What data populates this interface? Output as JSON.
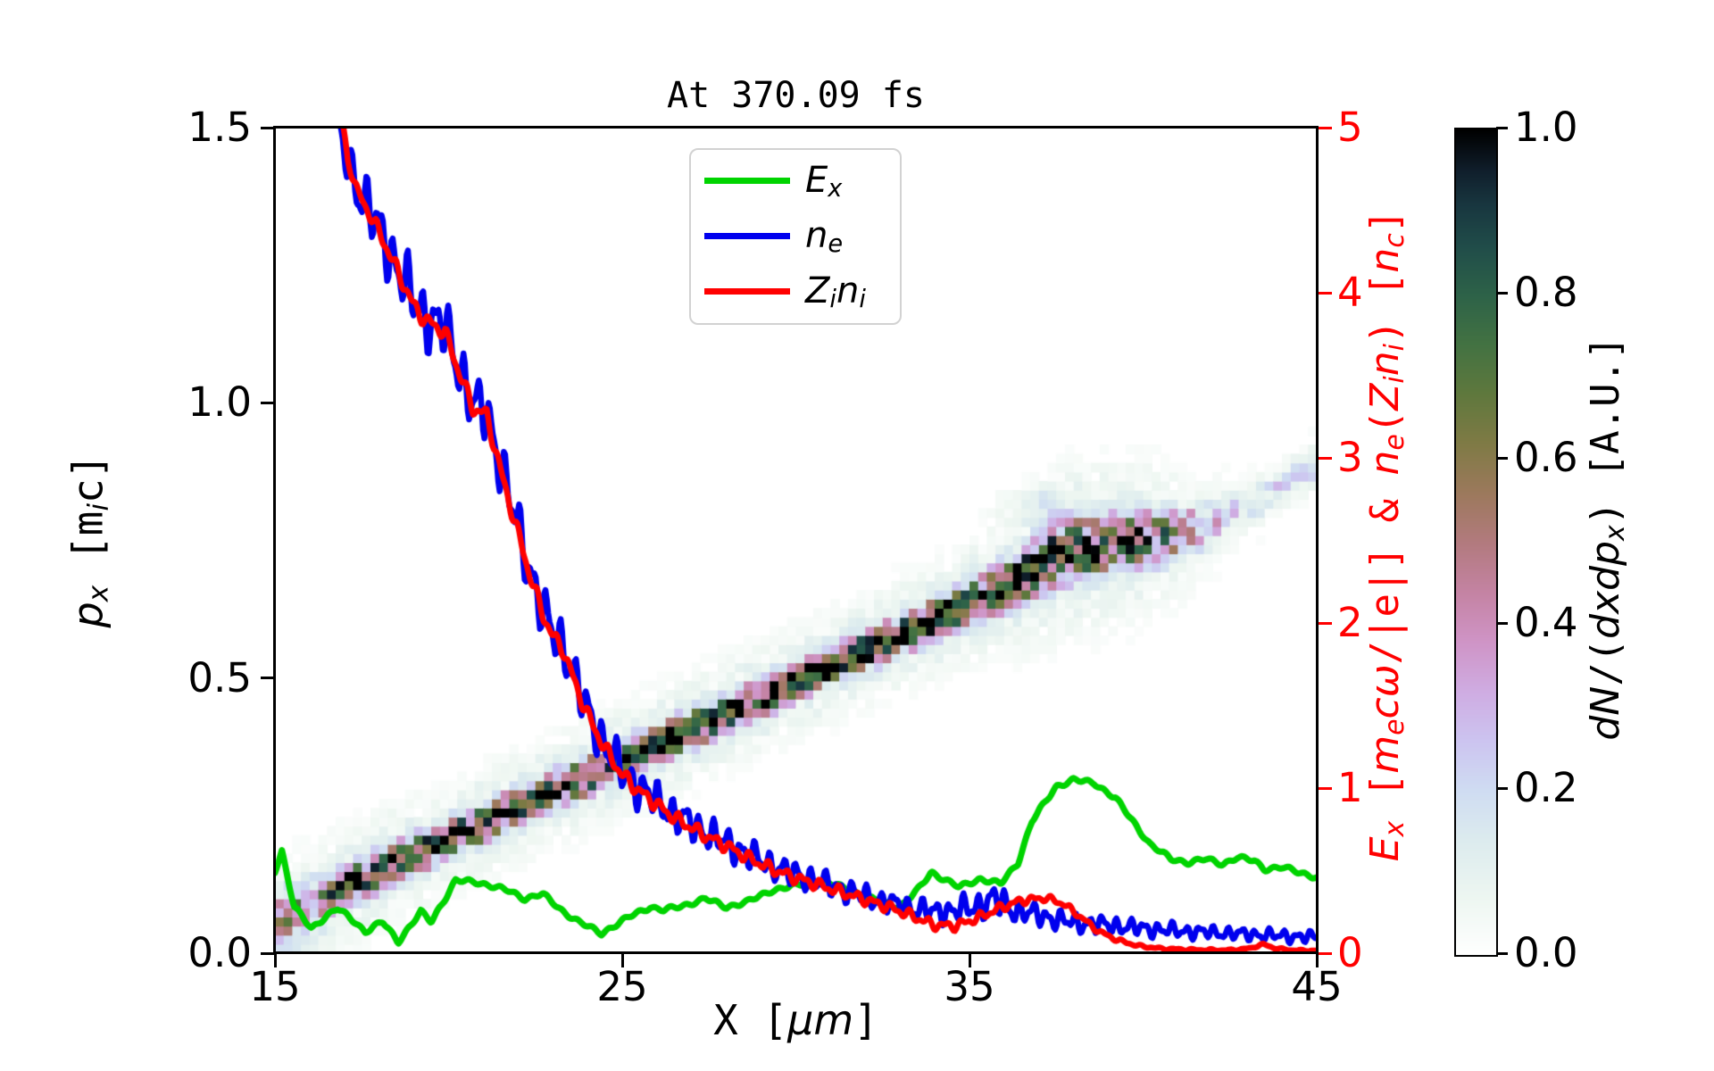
{
  "title": "At 370.09 fs",
  "colors": {
    "background": "#ffffff",
    "spine": "#000000",
    "right_axis": "#ff0000",
    "legend_border": "#d2d2d2",
    "ex_green": "#00d400",
    "ne_blue": "#0000ee",
    "zini_red": "#ff0000"
  },
  "labels": {
    "xlabel": [
      {
        "t": "X [",
        "mono": true
      },
      {
        "t": "μm",
        "i": true
      },
      {
        "t": "]",
        "mono": true
      }
    ],
    "ylabel_left": [
      {
        "t": "p",
        "i": true
      },
      {
        "t": "x",
        "i": true,
        "sub": true
      },
      {
        "t": " [m",
        "mono": true
      },
      {
        "t": "i",
        "i": true,
        "sub": true
      },
      {
        "t": "c]",
        "mono": true
      }
    ],
    "ylabel_right": [
      {
        "t": "E",
        "i": true
      },
      {
        "t": "x",
        "i": true,
        "sub": true
      },
      {
        "t": " [",
        "mono": true
      },
      {
        "t": "m",
        "i": true
      },
      {
        "t": "e",
        "i": true,
        "sub": true
      },
      {
        "t": "c",
        "i": true
      },
      {
        "t": "ω",
        "i": true
      },
      {
        "t": "/|e|] & ",
        "mono": true
      },
      {
        "t": "n",
        "i": true
      },
      {
        "t": "e",
        "i": true,
        "sub": true
      },
      {
        "t": "(",
        "mono": true
      },
      {
        "t": "Z",
        "i": true
      },
      {
        "t": "i",
        "i": true,
        "sub": true
      },
      {
        "t": "n",
        "i": true
      },
      {
        "t": "i",
        "i": true,
        "sub": true
      },
      {
        "t": ") [",
        "mono": true
      },
      {
        "t": "n",
        "i": true
      },
      {
        "t": "c",
        "i": true,
        "sub": true
      },
      {
        "t": "]",
        "mono": true
      }
    ],
    "colorbar_label": [
      {
        "t": "dN",
        "i": true
      },
      {
        "t": "/(",
        "mono": true
      },
      {
        "t": "dxdp",
        "i": true
      },
      {
        "t": "x",
        "i": true,
        "sub": true
      },
      {
        "t": ") ",
        "mono": true
      },
      {
        "t": "[A.U.]",
        "mono": true
      }
    ]
  },
  "chart_data": {
    "type": "composite",
    "subtypes": [
      "heatmap",
      "line"
    ],
    "title": "At 370.09 fs",
    "xlabel": "X [μm]",
    "ylabel_left": "p_x [m_i c]",
    "ylabel_right": "E_x [m_e cω/|e|] & n_e(Z_i n_i) [n_c]",
    "colorbar_label": "dN/(dxdp_x) [A.U.]",
    "xlim": [
      15,
      45
    ],
    "ylim_left": [
      0,
      1.5
    ],
    "ylim_right": [
      0,
      5
    ],
    "colorbar_lim": [
      0,
      1
    ],
    "grid": false,
    "legend_position": "upper center",
    "xticks": [
      "15",
      "25",
      "35",
      "45"
    ],
    "xtick_values": [
      15,
      25,
      35,
      45
    ],
    "yticks_left": [
      "0.0",
      "0.5",
      "1.0",
      "1.5"
    ],
    "ytick_left_values": [
      0.0,
      0.5,
      1.0,
      1.5
    ],
    "yticks_right": [
      "0",
      "1",
      "2",
      "3",
      "4",
      "5"
    ],
    "ytick_right_values": [
      0,
      1,
      2,
      3,
      4,
      5
    ],
    "colorbar_ticks": [
      "0.0",
      "0.2",
      "0.4",
      "0.6",
      "0.8",
      "1.0"
    ],
    "colorbar_tick_values": [
      0.0,
      0.2,
      0.4,
      0.6,
      0.8,
      1.0
    ],
    "legend": [
      {
        "label": "E_x",
        "color": "#00d400",
        "segments": [
          {
            "t": "E",
            "i": true
          },
          {
            "t": "x",
            "i": true,
            "sub": true
          }
        ]
      },
      {
        "label": "n_e",
        "color": "#0000ee",
        "segments": [
          {
            "t": "n",
            "i": true
          },
          {
            "t": "e",
            "i": true,
            "sub": true
          }
        ]
      },
      {
        "label": "Z_i n_i",
        "color": "#ff0000",
        "segments": [
          {
            "t": "Z",
            "i": true
          },
          {
            "t": "i",
            "i": true,
            "sub": true
          },
          {
            "t": "n",
            "i": true
          },
          {
            "t": "i",
            "i": true,
            "sub": true
          }
        ]
      }
    ],
    "colormap_stops": [
      [
        0.0,
        "#ffffff"
      ],
      [
        0.07,
        "#edf6f1"
      ],
      [
        0.14,
        "#dcebee"
      ],
      [
        0.2,
        "#cfdcf2"
      ],
      [
        0.26,
        "#ccc4f0"
      ],
      [
        0.32,
        "#cface2"
      ],
      [
        0.38,
        "#cf94c6"
      ],
      [
        0.44,
        "#c483a3"
      ],
      [
        0.5,
        "#b27a7e"
      ],
      [
        0.56,
        "#9c795c"
      ],
      [
        0.62,
        "#7f7a45"
      ],
      [
        0.68,
        "#5f783d"
      ],
      [
        0.74,
        "#437242"
      ],
      [
        0.8,
        "#2d6248"
      ],
      [
        0.86,
        "#204c49"
      ],
      [
        0.91,
        "#18363f"
      ],
      [
        0.95,
        "#101f2c"
      ],
      [
        1.0,
        "#000000"
      ]
    ],
    "series": [
      {
        "name": "E_x",
        "axis": "right",
        "color": "#00d400",
        "linewidth": 7,
        "x": [
          15.0,
          15.2,
          15.55,
          16.05,
          16.45,
          16.8,
          17.25,
          17.6,
          18.1,
          18.55,
          19.2,
          19.5,
          20.2,
          20.8,
          21.2,
          21.7,
          22.2,
          22.7,
          23.25,
          23.75,
          24.4,
          25.2,
          25.8,
          26.2,
          26.8,
          27.4,
          28.0,
          28.6,
          29.3,
          30.0,
          30.6,
          31.2,
          31.8,
          32.4,
          33.0,
          33.5,
          33.9,
          34.7,
          35.3,
          35.9,
          36.4,
          36.8,
          37.5,
          38.0,
          38.6,
          39.2,
          39.7,
          40.2,
          40.8,
          41.3,
          41.8,
          42.3,
          42.7,
          43.2,
          43.5,
          44.0,
          44.5,
          45.0
        ],
        "y": [
          0.5,
          0.62,
          0.28,
          0.15,
          0.22,
          0.27,
          0.2,
          0.13,
          0.19,
          0.07,
          0.25,
          0.19,
          0.44,
          0.43,
          0.41,
          0.38,
          0.33,
          0.36,
          0.26,
          0.19,
          0.12,
          0.22,
          0.28,
          0.26,
          0.29,
          0.33,
          0.28,
          0.31,
          0.38,
          0.41,
          0.44,
          0.41,
          0.36,
          0.31,
          0.28,
          0.38,
          0.49,
          0.4,
          0.45,
          0.42,
          0.55,
          0.8,
          1.01,
          1.05,
          1.03,
          0.94,
          0.8,
          0.66,
          0.57,
          0.55,
          0.57,
          0.54,
          0.58,
          0.56,
          0.51,
          0.52,
          0.49,
          0.46
        ],
        "noise_amp_x": [
          15,
          45
        ],
        "noise_amp_v": [
          0.02,
          0.02
        ],
        "noise_waves": [
          [
            14.1,
            0.3,
            0.5
          ],
          [
            5.3,
            0.0,
            0.25
          ]
        ]
      },
      {
        "name": "n_e",
        "axis": "right",
        "color": "#0000ee",
        "linewidth": 6.5,
        "x": [
          16.55,
          16.8,
          17.0,
          17.4,
          17.8,
          18.2,
          18.6,
          19.0,
          19.3,
          19.9,
          20.3,
          20.7,
          21.1,
          21.5,
          21.9,
          22.3,
          22.7,
          23.0,
          23.3,
          23.7,
          24.1,
          24.5,
          25.0,
          25.5,
          26.0,
          26.5,
          27.0,
          27.5,
          28.0,
          28.6,
          29.2,
          29.8,
          30.4,
          31.0,
          31.6,
          32.2,
          32.8,
          33.4,
          34.0,
          34.6,
          35.2,
          35.7,
          36.2,
          37.0,
          37.6,
          38.2,
          39.0,
          40.0,
          41.0,
          42.0,
          43.0,
          44.0,
          45.0
        ],
        "y": [
          5.6,
          5.05,
          4.85,
          4.62,
          4.47,
          4.3,
          4.12,
          3.95,
          3.86,
          3.78,
          3.55,
          3.32,
          3.28,
          2.95,
          2.65,
          2.35,
          2.08,
          1.94,
          1.86,
          1.62,
          1.42,
          1.26,
          1.1,
          1.0,
          0.92,
          0.84,
          0.78,
          0.72,
          0.67,
          0.6,
          0.54,
          0.49,
          0.45,
          0.41,
          0.37,
          0.33,
          0.3,
          0.27,
          0.25,
          0.26,
          0.28,
          0.33,
          0.27,
          0.23,
          0.2,
          0.18,
          0.17,
          0.15,
          0.135,
          0.125,
          0.115,
          0.105,
          0.095
        ],
        "noise_amp_x": [
          16.55,
          17.5,
          19,
          21,
          23,
          25,
          27,
          29,
          31,
          33,
          34.5,
          35.8,
          37,
          38.5,
          40,
          42,
          45
        ],
        "noise_amp_v": [
          0.1,
          0.22,
          0.24,
          0.22,
          0.2,
          0.16,
          0.13,
          0.11,
          0.09,
          0.08,
          0.09,
          0.12,
          0.08,
          0.07,
          0.06,
          0.05,
          0.045
        ],
        "noise_waves": [
          [
            15.7,
            1.3,
            0.55
          ],
          [
            27.1,
            0.5,
            0.3
          ],
          [
            6.3,
            2.1,
            0.15
          ]
        ]
      },
      {
        "name": "Z_i n_i",
        "axis": "right",
        "color": "#ff0000",
        "linewidth": 6.5,
        "x": [
          16.7,
          16.9,
          17.1,
          17.4,
          17.8,
          18.2,
          18.6,
          19.0,
          19.3,
          19.9,
          20.3,
          20.7,
          21.1,
          21.5,
          21.9,
          22.3,
          22.7,
          23.0,
          23.3,
          23.7,
          24.1,
          24.5,
          25.0,
          25.5,
          26.0,
          26.5,
          27.0,
          27.5,
          28.0,
          28.6,
          29.2,
          29.8,
          30.4,
          31.0,
          31.6,
          32.2,
          32.8,
          33.4,
          34.0,
          34.6,
          35.2,
          35.9,
          36.5,
          37.2,
          37.7,
          38.2,
          38.7,
          39.25,
          39.85,
          40.5,
          41.5,
          42.5,
          43.1,
          43.45,
          43.8,
          44.3,
          45.0
        ],
        "y": [
          5.6,
          5.1,
          4.8,
          4.6,
          4.45,
          4.28,
          4.1,
          3.92,
          3.84,
          3.76,
          3.52,
          3.3,
          3.26,
          2.92,
          2.62,
          2.32,
          2.06,
          1.92,
          1.84,
          1.6,
          1.4,
          1.24,
          1.08,
          0.98,
          0.9,
          0.82,
          0.76,
          0.7,
          0.65,
          0.58,
          0.52,
          0.47,
          0.43,
          0.39,
          0.35,
          0.31,
          0.27,
          0.22,
          0.17,
          0.165,
          0.21,
          0.275,
          0.32,
          0.335,
          0.3,
          0.22,
          0.135,
          0.08,
          0.045,
          0.028,
          0.02,
          0.018,
          0.03,
          0.055,
          0.03,
          0.018,
          0.015
        ],
        "noise_amp_x": [
          16.7,
          18,
          24,
          30,
          36,
          38,
          40,
          45
        ],
        "noise_amp_v": [
          0.02,
          0.05,
          0.05,
          0.04,
          0.03,
          0.02,
          0.008,
          0.005
        ],
        "noise_waves": [
          [
            12.3,
            0.7,
            0.6
          ],
          [
            21.7,
            2.2,
            0.4
          ]
        ]
      }
    ],
    "heatmap_band": {
      "units": {
        "x": "μm",
        "p": "m_i c",
        "value": "A.U."
      },
      "cell_dx": 0.25,
      "cell_dp": 0.0165,
      "x": [
        15,
        15.5,
        16,
        16.5,
        17,
        17.5,
        18,
        19,
        20,
        22,
        24,
        26,
        28,
        30,
        32,
        34,
        35.5,
        36.5,
        37.3,
        38,
        39,
        40,
        41,
        41.8,
        42.6,
        43.4,
        44.2,
        45
      ],
      "p": [
        0.066,
        0.08,
        0.094,
        0.108,
        0.123,
        0.137,
        0.151,
        0.18,
        0.208,
        0.266,
        0.323,
        0.38,
        0.436,
        0.493,
        0.551,
        0.607,
        0.652,
        0.685,
        0.722,
        0.733,
        0.744,
        0.753,
        0.763,
        0.778,
        0.798,
        0.828,
        0.858,
        0.885
      ],
      "intensity": [
        0.3,
        0.35,
        0.45,
        0.6,
        0.8,
        0.9,
        0.95,
        1.0,
        1.0,
        1.0,
        1.0,
        1.0,
        1.0,
        1.0,
        1.0,
        1.0,
        1.0,
        1.0,
        1.0,
        0.95,
        0.85,
        0.8,
        0.6,
        0.35,
        0.25,
        0.22,
        0.2,
        0.2
      ],
      "sigma": [
        0.03,
        0.03,
        0.028,
        0.027,
        0.026,
        0.025,
        0.024,
        0.022,
        0.022,
        0.022,
        0.022,
        0.022,
        0.022,
        0.022,
        0.022,
        0.023,
        0.025,
        0.032,
        0.036,
        0.036,
        0.035,
        0.034,
        0.03,
        0.028,
        0.025,
        0.023,
        0.022,
        0.022
      ],
      "halo_scale": 2.6,
      "halo_amp": 0.14,
      "blob": {
        "x": 15.25,
        "p": 0.055,
        "sx": 1.0,
        "sp": 0.05,
        "amp": 0.25
      },
      "wisp": {
        "x": 37.2,
        "p": 0.815,
        "sx": 1.3,
        "sp": 0.026,
        "amp": 0.08
      },
      "ridge": {
        "x": 39.0,
        "sx": 2.2,
        "dp": 0.03,
        "sp": 0.012,
        "amp": 0.45
      },
      "seed": 7
    }
  }
}
